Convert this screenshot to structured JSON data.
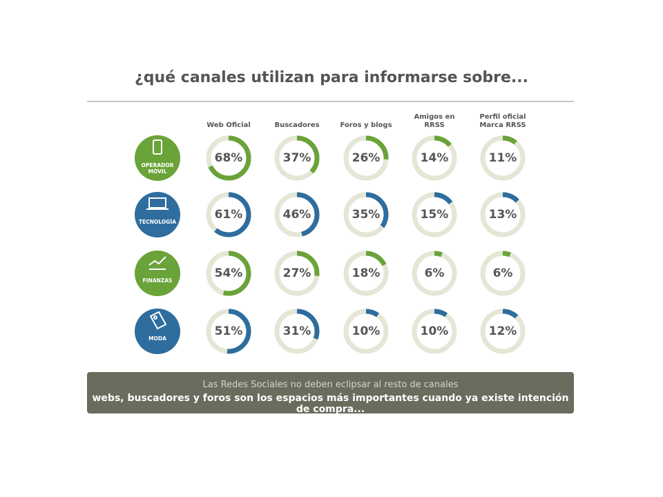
{
  "chart_data": {
    "type": "donut",
    "title": "¿qué canales utilizan para informarse sobre...",
    "categories": [
      "Web Oficial",
      "Buscadores",
      "Foros y blogs",
      "Amigos en RRSS",
      "Perfil oficial Marca RRSS"
    ],
    "series": [
      {
        "name": "OPERADOR MÓVIL",
        "color": "#6aa339",
        "values": [
          68,
          37,
          26,
          14,
          11
        ],
        "value_labels": [
          "68%",
          "37%",
          "26%",
          "14%",
          "11%"
        ]
      },
      {
        "name": "TECNOLOGÍA",
        "color": "#2e6d9e",
        "values": [
          61,
          46,
          35,
          15,
          13
        ],
        "value_labels": [
          "61%",
          "46%",
          "35%",
          "15%",
          "13%"
        ]
      },
      {
        "name": "FINANZAS",
        "color": "#6aa339",
        "values": [
          54,
          27,
          18,
          6,
          6
        ],
        "value_labels": [
          "54%",
          "27%",
          "18%",
          "6%",
          "6%"
        ]
      },
      {
        "name": "MODA",
        "color": "#2e6d9e",
        "values": [
          51,
          31,
          10,
          10,
          12
        ],
        "value_labels": [
          "51%",
          "31%",
          "10%",
          "10%",
          "12%"
        ]
      }
    ],
    "annotations": [
      "Las Redes Sociales no deben eclipsar al resto de canales",
      "webs, buscadores y foros son los espacios más importantes cuando ya existe intención de compra..."
    ]
  }
}
